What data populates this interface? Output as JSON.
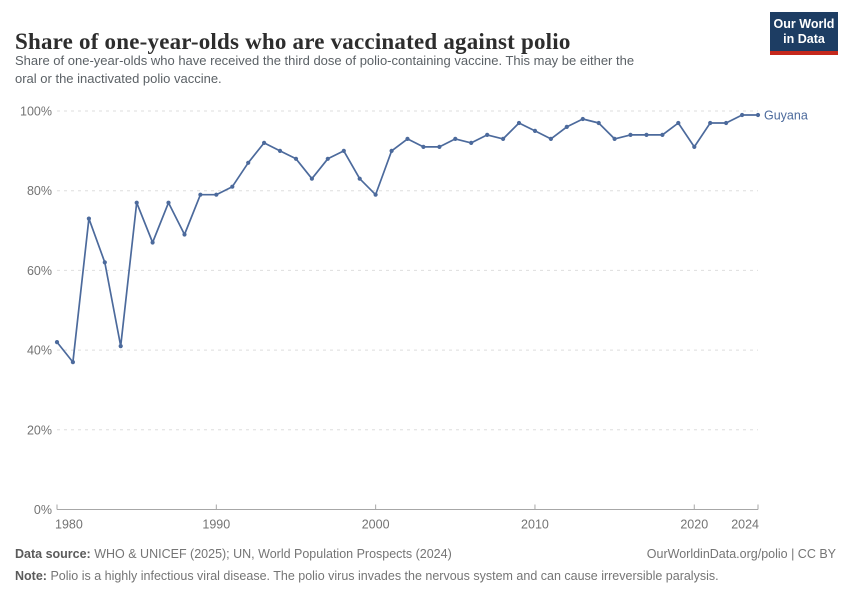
{
  "header": {
    "title": "Share of one-year-olds who are vaccinated against polio",
    "subtitle_lines": [
      "Share of one-year-olds who have received the third dose of polio-containing vaccine. This may be either the",
      "oral or the inactivated polio vaccine."
    ],
    "logo": {
      "line1": "Our World",
      "line2": "in Data",
      "bg_color": "#1d3d63",
      "accent_color": "#c5281c"
    }
  },
  "chart_data": {
    "type": "line",
    "title": "Share of one-year-olds who are vaccinated against polio",
    "xlabel": "",
    "ylabel": "",
    "xlim": [
      1980,
      2024
    ],
    "ylim": [
      0,
      100
    ],
    "grid": "horizontal-dashed",
    "legend_position": "end-of-line-label",
    "x_ticks": [
      1980,
      1990,
      2000,
      2010,
      2020,
      2024
    ],
    "y_ticks": [
      0,
      20,
      40,
      60,
      80,
      100
    ],
    "y_tick_suffix": "%",
    "x": [
      1980,
      1981,
      1982,
      1983,
      1984,
      1985,
      1986,
      1987,
      1988,
      1989,
      1990,
      1991,
      1992,
      1993,
      1994,
      1995,
      1996,
      1997,
      1998,
      1999,
      2000,
      2001,
      2002,
      2003,
      2004,
      2005,
      2006,
      2007,
      2008,
      2009,
      2010,
      2011,
      2012,
      2013,
      2014,
      2015,
      2016,
      2017,
      2018,
      2019,
      2020,
      2021,
      2022,
      2023,
      2024
    ],
    "series": [
      {
        "name": "Guyana",
        "color": "#4C6A9C",
        "values": [
          42,
          37,
          73,
          62,
          41,
          77,
          67,
          77,
          69,
          79,
          79,
          81,
          87,
          92,
          90,
          88,
          83,
          88,
          90,
          83,
          79,
          90,
          93,
          91,
          91,
          93,
          92,
          94,
          93,
          97,
          95,
          93,
          96,
          98,
          97,
          93,
          94,
          94,
          94,
          97,
          91,
          97,
          97,
          99,
          99
        ]
      }
    ],
    "axis_text_color": "#737373",
    "gridline_color": "#dedede",
    "axis_line_color": "#a7a7a7"
  },
  "footer": {
    "data_source_label": "Data source:",
    "data_source": "WHO & UNICEF (2025); UN, World Population Prospects (2024)",
    "attribution": "OurWorldinData.org/polio | CC BY",
    "note_label": "Note:",
    "note": "Polio is a highly infectious viral disease. The polio virus invades the nervous system and can cause irreversible paralysis."
  }
}
